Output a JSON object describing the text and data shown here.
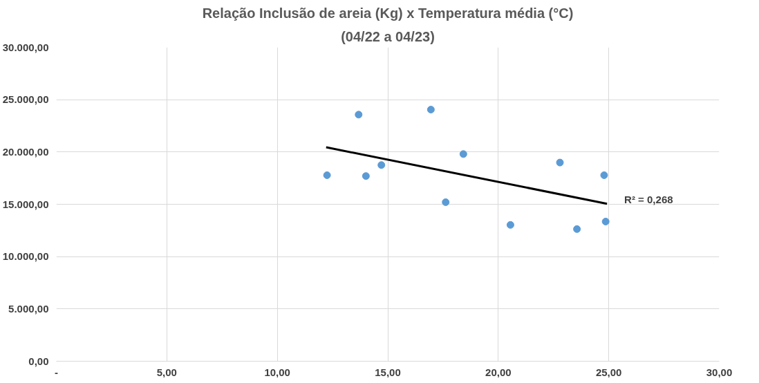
{
  "chart_data": {
    "type": "scatter",
    "title": "Relação Inclusão de areia (Kg) x Temperatura média (°C)",
    "subtitle": "(04/22 a 04/23)",
    "x": [
      12.25,
      13.68,
      14.01,
      14.71,
      16.95,
      17.62,
      18.42,
      20.55,
      22.79,
      23.56,
      24.79,
      24.86
    ],
    "series": [
      {
        "color": "#5b9bd5",
        "marker": "circle",
        "values": [
          17780,
          23570,
          17700,
          18750,
          24050,
          15200,
          19800,
          13030,
          18990,
          12630,
          17780,
          13350
        ]
      },
      {
        "type": "line",
        "color": "#000000",
        "x": [
          12.21,
          24.92
        ],
        "values": [
          20450,
          15050
        ]
      }
    ],
    "annotations": [
      "R² = 0,268"
    ],
    "xlim": [
      0,
      30
    ],
    "ylim": [
      0,
      30000
    ],
    "xticks": [
      {
        "value": 0,
        "label": "-"
      },
      {
        "value": 5,
        "label": "5,00"
      },
      {
        "value": 10,
        "label": "10,00"
      },
      {
        "value": 15,
        "label": "15,00"
      },
      {
        "value": 20,
        "label": "20,00"
      },
      {
        "value": 25,
        "label": "25,00"
      },
      {
        "value": 30,
        "label": "30,00"
      }
    ],
    "yticks": [
      {
        "value": 0,
        "label": "0,00"
      },
      {
        "value": 5000,
        "label": "5.000,00"
      },
      {
        "value": 10000,
        "label": "10.000,00"
      },
      {
        "value": 15000,
        "label": "15.000,00"
      },
      {
        "value": 20000,
        "label": "20.000,00"
      },
      {
        "value": 25000,
        "label": "25.000,00"
      },
      {
        "value": 30000,
        "label": "30.000,00"
      }
    ],
    "grid": true
  }
}
